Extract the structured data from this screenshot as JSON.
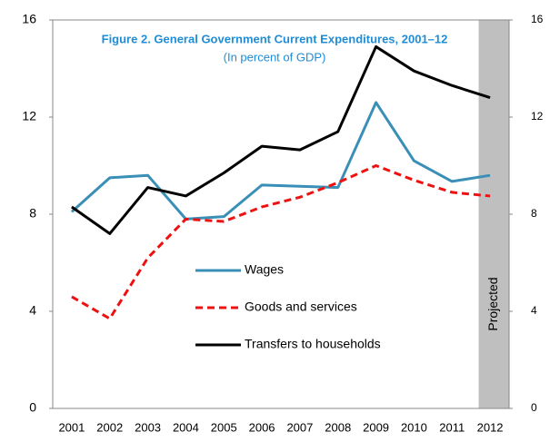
{
  "chart_data": {
    "type": "line",
    "title": "Figure 2. General Government Current Expenditures, 2001–12",
    "subtitle": "(In percent of GDP)",
    "annotation": "Projected",
    "categories": [
      "2001",
      "2002",
      "2003",
      "2004",
      "2005",
      "2006",
      "2007",
      "2008",
      "2009",
      "2010",
      "2011",
      "2012"
    ],
    "series": [
      {
        "name": "Wages",
        "color": "#3a8fb7",
        "line_style": "solid",
        "values": [
          8.1,
          9.5,
          9.6,
          7.8,
          7.9,
          9.2,
          9.15,
          9.1,
          12.6,
          10.2,
          9.35,
          9.6
        ]
      },
      {
        "name": "Goods and services",
        "color": "#ee1111",
        "line_style": "dashed",
        "values": [
          4.6,
          3.7,
          6.2,
          7.8,
          7.7,
          8.3,
          8.7,
          9.3,
          10.0,
          9.4,
          8.9,
          8.75
        ]
      },
      {
        "name": "Transfers to households",
        "color": "#000000",
        "line_style": "solid",
        "values": [
          8.3,
          7.2,
          9.1,
          8.75,
          9.7,
          10.8,
          10.65,
          11.4,
          14.9,
          13.9,
          13.3,
          12.8
        ]
      }
    ],
    "ylim": [
      0,
      16
    ],
    "yticks": [
      0,
      4,
      8,
      12,
      16
    ],
    "y2lim": [
      0,
      16
    ],
    "y2ticks": [
      0,
      4,
      8,
      12,
      16
    ],
    "projected_from": "2012",
    "grid": false,
    "legend_position": "center"
  }
}
